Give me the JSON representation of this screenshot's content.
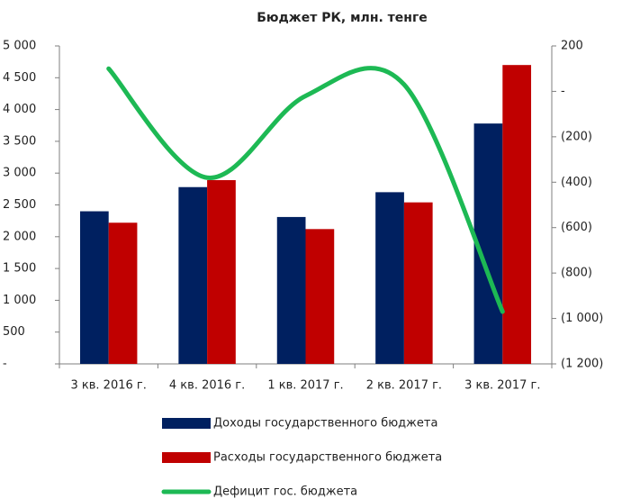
{
  "chart_data": {
    "type": "bar_line",
    "title": "Бюджет РК, млн. тенге",
    "categories": [
      "3 кв. 2016 г.",
      "4 кв. 2016 г.",
      "1 кв. 2017 г.",
      "2 кв. 2017 г.",
      "3 кв. 2017 г."
    ],
    "series": [
      {
        "name": "Доходы государственного бюджета",
        "color": "#002060",
        "type": "bar",
        "values": [
          2400,
          2780,
          2310,
          2700,
          3780
        ]
      },
      {
        "name": "Расходы государственного бюджета",
        "color": "#c00000",
        "type": "bar",
        "values": [
          2220,
          2890,
          2120,
          2540,
          4700
        ]
      },
      {
        "name": "Дефицит гос. бюджета",
        "color": "#1db954",
        "type": "line",
        "axis": "y2",
        "values": [
          100,
          -380,
          -20,
          30,
          -970
        ]
      }
    ],
    "ylim": [
      0,
      5000
    ],
    "yticks": [
      {
        "value": 0,
        "label": "-"
      },
      500,
      {
        "value": 1000,
        "label": "1 000"
      },
      {
        "value": 1500,
        "label": "1 500"
      },
      {
        "value": 2000,
        "label": "2 000"
      },
      {
        "value": 2500,
        "label": "2 500"
      },
      {
        "value": 3000,
        "label": "3 000"
      },
      {
        "value": 3500,
        "label": "3 500"
      },
      {
        "value": 4000,
        "label": "4 000"
      },
      {
        "value": 4500,
        "label": "4 500"
      },
      {
        "value": 5000,
        "label": "5 000"
      }
    ],
    "y2lim": [
      -1200,
      200
    ],
    "y2ticks": [
      {
        "value": -1200,
        "label": "(1 200)"
      },
      {
        "value": -1000,
        "label": "(1 000)"
      },
      {
        "value": -800,
        "label": "(800)"
      },
      {
        "value": -600,
        "label": "(600)"
      },
      {
        "value": -400,
        "label": "(400)"
      },
      {
        "value": -200,
        "label": "(200)"
      },
      {
        "value": 0,
        "label": "-"
      },
      200
    ],
    "legend": "bottom"
  }
}
